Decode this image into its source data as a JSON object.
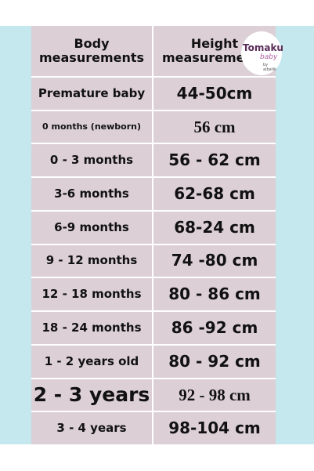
{
  "logo": {
    "brand": "Tomaku",
    "sub": "baby",
    "by": "by albatik"
  },
  "table": {
    "header": [
      "Body measurements",
      "Height measurements"
    ],
    "rows": [
      [
        "Premature baby",
        "44-50cm"
      ],
      [
        "0 months (newborn)",
        "56 cm"
      ],
      [
        "0 - 3 months",
        "56 - 62 cm"
      ],
      [
        "3-6 months",
        "62-68 cm"
      ],
      [
        "6-9 months",
        "68-24 cm"
      ],
      [
        "9 - 12 months",
        "74 -80 cm"
      ],
      [
        "12 - 18 months",
        "80 - 86 cm"
      ],
      [
        "18 - 24 months",
        "86 -92 cm"
      ],
      [
        "1 - 2 years old",
        "80 - 92 cm"
      ],
      [
        "2 - 3 years",
        "92 - 98 cm"
      ],
      [
        "3 - 4 years",
        "98-104 cm"
      ]
    ]
  }
}
